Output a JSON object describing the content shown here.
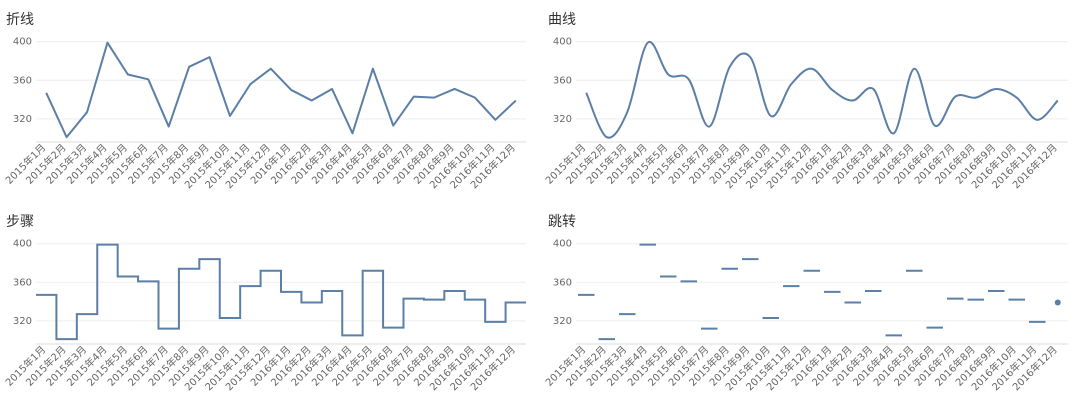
{
  "theme": {
    "line_color": "#5b7fa6",
    "grid_color": "#eeeeee",
    "axis_color": "#dddddd",
    "text_color": "#666666",
    "title_color": "#333333"
  },
  "categories": [
    "2015年1月",
    "2015年2月",
    "2015年3月",
    "2015年4月",
    "2015年5月",
    "2015年6月",
    "2015年7月",
    "2015年8月",
    "2015年9月",
    "2015年10月",
    "2015年11月",
    "2015年12月",
    "2016年1月",
    "2016年2月",
    "2016年3月",
    "2016年4月",
    "2016年5月",
    "2016年6月",
    "2016年7月",
    "2016年8月",
    "2016年9月",
    "2016年10月",
    "2016年11月",
    "2016年12月"
  ],
  "values": [
    347,
    301,
    327,
    399,
    366,
    361,
    312,
    374,
    384,
    323,
    356,
    372,
    350,
    339,
    351,
    305,
    372,
    313,
    343,
    342,
    351,
    342,
    319,
    339
  ],
  "chart_data": [
    {
      "type": "line",
      "title": "折线",
      "interpolation": "linear",
      "yticks": [
        320,
        360,
        400
      ],
      "ylim": [
        296,
        408
      ],
      "grid": true
    },
    {
      "type": "line",
      "title": "曲线",
      "interpolation": "smooth",
      "yticks": [
        320,
        360,
        400
      ],
      "ylim": [
        296,
        408
      ],
      "grid": true
    },
    {
      "type": "line",
      "title": "步骤",
      "interpolation": "step",
      "yticks": [
        320,
        360,
        400
      ],
      "ylim": [
        296,
        408
      ],
      "grid": true
    },
    {
      "type": "line",
      "title": "跳转",
      "interpolation": "jump",
      "yticks": [
        320,
        360,
        400
      ],
      "ylim": [
        296,
        408
      ],
      "grid": true
    }
  ]
}
